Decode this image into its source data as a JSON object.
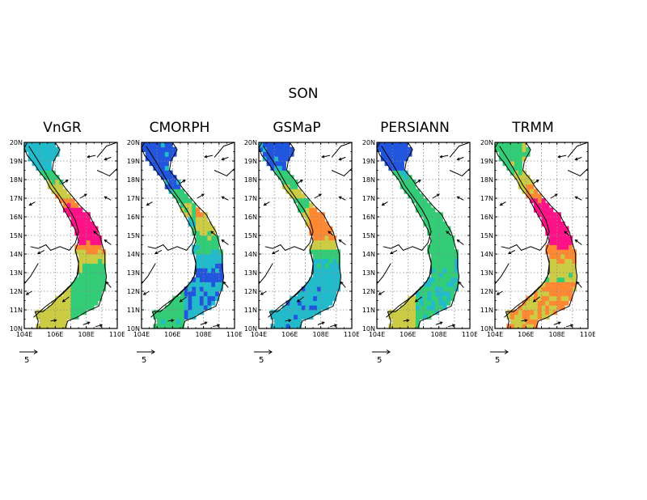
{
  "title": "SON",
  "panels": [
    {
      "name": "VnGR",
      "scheme": "vngr"
    },
    {
      "name": "CMORPH",
      "scheme": "cmorph"
    },
    {
      "name": "GSMaP",
      "scheme": "gsmap"
    },
    {
      "name": "PERSIANN",
      "scheme": "persiann"
    },
    {
      "name": "TRMM",
      "scheme": "trmm"
    }
  ],
  "lat_labels": [
    "20N",
    "19N",
    "18N",
    "17N",
    "16N",
    "15N",
    "14N",
    "13N",
    "12N",
    "11N",
    "10N"
  ],
  "lon_labels": [
    "104E",
    "106E",
    "108E",
    "110E"
  ],
  "reference_vector": {
    "label": "5"
  },
  "colors": {
    "low": "#2255dd",
    "mid_low": "#22bbcc",
    "mid": "#33cc77",
    "mid_high": "#cccc44",
    "high": "#ff8833",
    "max": "#ff1188"
  }
}
